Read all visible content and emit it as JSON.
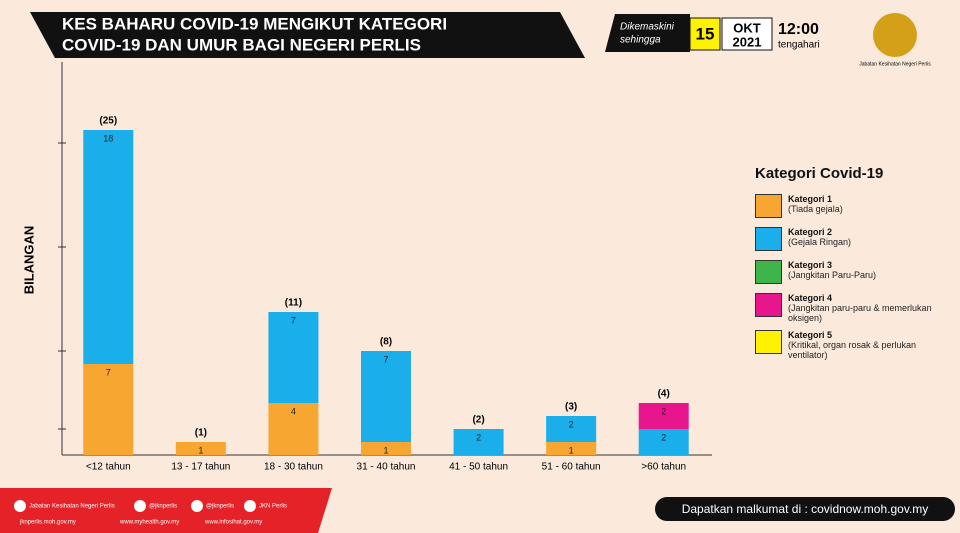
{
  "header": {
    "title_lines": [
      "KES BAHARU COVID-19 MENGIKUT KATEGORI",
      "COVID-19 DAN UMUR BAGI NEGERI PERLIS"
    ],
    "updated": [
      "Dikemaskini",
      "sehingga"
    ],
    "day": "15",
    "month": "OKT",
    "year": "2021",
    "time": "12:00",
    "period": "tengahari",
    "agency": "Jabatan Kesihatan Negeri Perlis"
  },
  "chart_data": {
    "type": "stacked_bar",
    "y_label": "BILANGAN",
    "legend_title": "Kategori Covid-19",
    "categories": [
      "<12 tahun",
      "13 - 17 tahun",
      "18 - 30 tahun",
      "31 - 40 tahun",
      "41 - 50 tahun",
      "51 - 60 tahun",
      ">60 tahun"
    ],
    "series": [
      {
        "name": "Kategori 1",
        "description": "(Tiada gejala)",
        "color": "#f7a631",
        "values": [
          7,
          1,
          4,
          1,
          null,
          1,
          null
        ]
      },
      {
        "name": "Kategori 2",
        "description": "(Gejala Ringan)",
        "color": "#1aaeea",
        "values": [
          18,
          null,
          7,
          7,
          2,
          2,
          2
        ]
      },
      {
        "name": "Kategori 3",
        "description": "(Jangkitan Paru-Paru)",
        "color": "#3db54a",
        "values": [
          null,
          null,
          null,
          null,
          null,
          null,
          null
        ]
      },
      {
        "name": "Kategori 4",
        "description": "(Jangkitan paru-paru & memerlukan oksigen)",
        "color": "#e8168c",
        "values": [
          null,
          null,
          null,
          null,
          null,
          null,
          2
        ]
      },
      {
        "name": "Kategori 5",
        "description": "(Kritikal, organ rosak & perlukan ventilator)",
        "color": "#fff200",
        "values": [
          null,
          null,
          null,
          null,
          null,
          null,
          null
        ]
      }
    ],
    "totals": [
      25,
      1,
      11,
      8,
      2,
      3,
      4
    ],
    "total_labels": [
      "(25)",
      "(1)",
      "(11)",
      "(8)",
      "(2)",
      "(3)",
      "(4)"
    ],
    "ylim": [
      0,
      30
    ],
    "yticks": [
      2,
      8,
      16,
      24
    ]
  },
  "footer": {
    "social": [
      "Jabatan Kesihatan Negeri Perlis",
      "@jknperlis",
      "@jknperlis",
      "JKN Perlis"
    ],
    "websites": [
      "jknperlis.moh.gov.my",
      "www.myhealth.gov.my",
      "www.infosihat.gov.my"
    ],
    "info": "Dapatkan malkumat di : covidnow.moh.gov.my"
  }
}
